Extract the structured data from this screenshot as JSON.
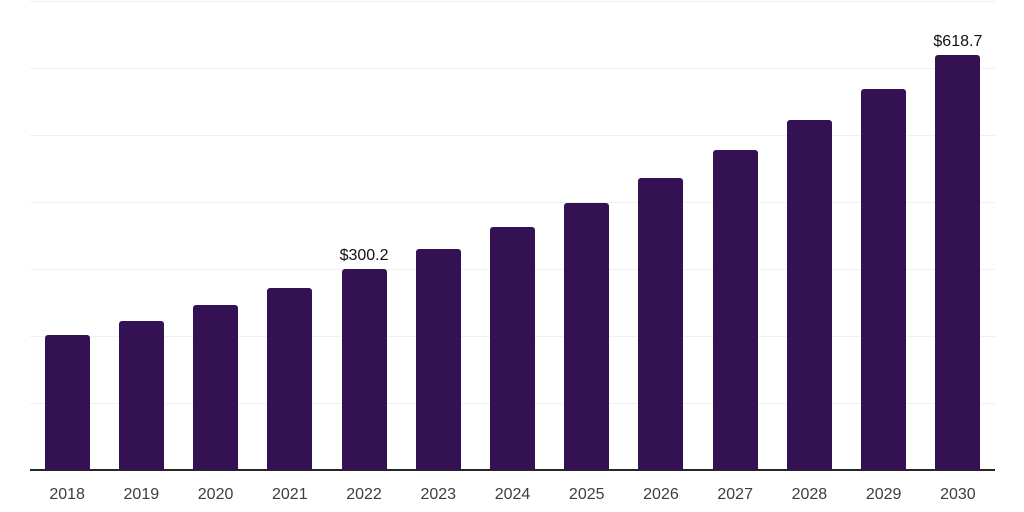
{
  "chart_data": {
    "type": "bar",
    "title": "",
    "xlabel": "",
    "ylabel": "",
    "categories": [
      "2018",
      "2019",
      "2020",
      "2021",
      "2022",
      "2023",
      "2024",
      "2025",
      "2026",
      "2027",
      "2028",
      "2029",
      "2030"
    ],
    "series": [
      {
        "name": "value",
        "values": [
          201.7,
          223.0,
          246.9,
          272.2,
          300.2,
          330.0,
          362.2,
          398.6,
          435.9,
          478.1,
          521.8,
          568.6,
          618.7
        ]
      }
    ],
    "data_labels": [
      {
        "category": "2022",
        "text": "$300.2"
      },
      {
        "category": "2030",
        "text": "$618.7"
      }
    ],
    "ylim": [
      0,
      700
    ],
    "grid": {
      "show": true,
      "interval": 100
    },
    "legend": {
      "show": false
    },
    "colors": {
      "bar": "#341153",
      "gridline": "#f0f0f0",
      "axis_line": "#262626",
      "tick_label": "#3d3d3d",
      "data_label": "#111111",
      "background": "#ffffff"
    }
  }
}
